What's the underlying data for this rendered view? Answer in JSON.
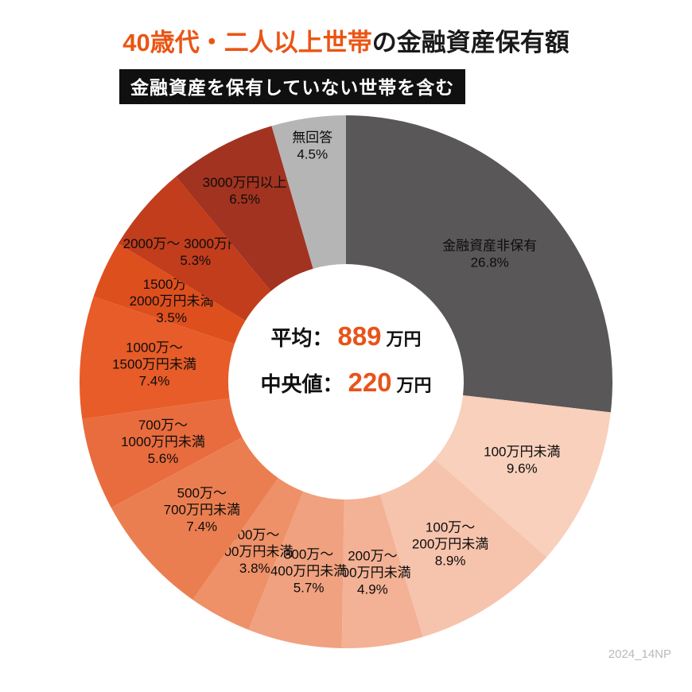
{
  "title": {
    "highlight": "40歳代・二人以上世帯",
    "rest": "の金融資産保有額"
  },
  "badge": "金融資産を保有していない世帯を含む",
  "center": {
    "avg_label": "平均：",
    "avg_value": "889",
    "avg_unit": "万円",
    "med_label": "中央値：",
    "med_value": "220",
    "med_unit": "万円"
  },
  "watermark": "2024_14NP",
  "colors": {
    "accent_orange": "#ea5514",
    "nonholder_gray": "#595757",
    "noanswer_gray": "#b5b5b6",
    "badge_black": "#101010"
  },
  "chart_data": {
    "type": "pie",
    "donut": true,
    "title": "40歳代・二人以上世帯の金融資産保有額",
    "subtitle": "金融資産を保有していない世帯を含む",
    "start_angle": "top",
    "direction": "clockwise",
    "unit": "%",
    "stats": {
      "average": "889万円",
      "median": "220万円"
    },
    "segments": [
      {
        "label": "金融資産非保有",
        "value": 26.8,
        "color": "#595757",
        "label_lines": [
          "金融資産非保有",
          "26.8%"
        ]
      },
      {
        "label": "100万円未満",
        "value": 9.6,
        "color": "#f8d0bc",
        "label_lines": [
          "100万円未満",
          "9.6%"
        ]
      },
      {
        "label": "100万〜200万円未満",
        "value": 8.9,
        "color": "#f6c3ac",
        "label_lines": [
          "100万〜",
          "200万円未満",
          "8.9%"
        ]
      },
      {
        "label": "200万〜300万円未満",
        "value": 4.9,
        "color": "#f3b195",
        "label_lines": [
          "200万〜",
          "300万円未満",
          "4.9%"
        ]
      },
      {
        "label": "300万〜400万円未満",
        "value": 5.7,
        "color": "#f0a17f",
        "label_lines": [
          "300万〜",
          "400万円未満",
          "5.7%"
        ]
      },
      {
        "label": "400万〜500万円未満",
        "value": 3.8,
        "color": "#ee9068",
        "label_lines": [
          "400万〜",
          "500万円未満",
          "3.8%"
        ]
      },
      {
        "label": "500万〜700万円未満",
        "value": 7.4,
        "color": "#eb7e51",
        "label_lines": [
          "500万〜",
          "700万円未満",
          "7.4%"
        ]
      },
      {
        "label": "700万〜1000万円未満",
        "value": 5.6,
        "color": "#e96c3e",
        "label_lines": [
          "700万〜",
          "1000万円未満",
          "5.6%"
        ]
      },
      {
        "label": "1000万〜1500万円未満",
        "value": 7.4,
        "color": "#e75c28",
        "label_lines": [
          "1000万〜",
          "1500万円未満",
          "7.4%"
        ]
      },
      {
        "label": "1500万〜2000万円未満",
        "value": 3.5,
        "color": "#de4f1e",
        "label_lines": [
          "1500万〜",
          "2000万円未満",
          "3.5%"
        ]
      },
      {
        "label": "2000万〜3000万円未満",
        "value": 5.3,
        "color": "#c23d1c",
        "label_lines": [
          "2000万〜 3000万円未満",
          "5.3%"
        ]
      },
      {
        "label": "3000万円以上",
        "value": 6.5,
        "color": "#a23320",
        "label_lines": [
          "3000万円以上",
          "6.5%"
        ]
      },
      {
        "label": "無回答",
        "value": 4.5,
        "color": "#b5b5b6",
        "label_lines": [
          "無回答",
          "4.5%"
        ]
      }
    ]
  }
}
